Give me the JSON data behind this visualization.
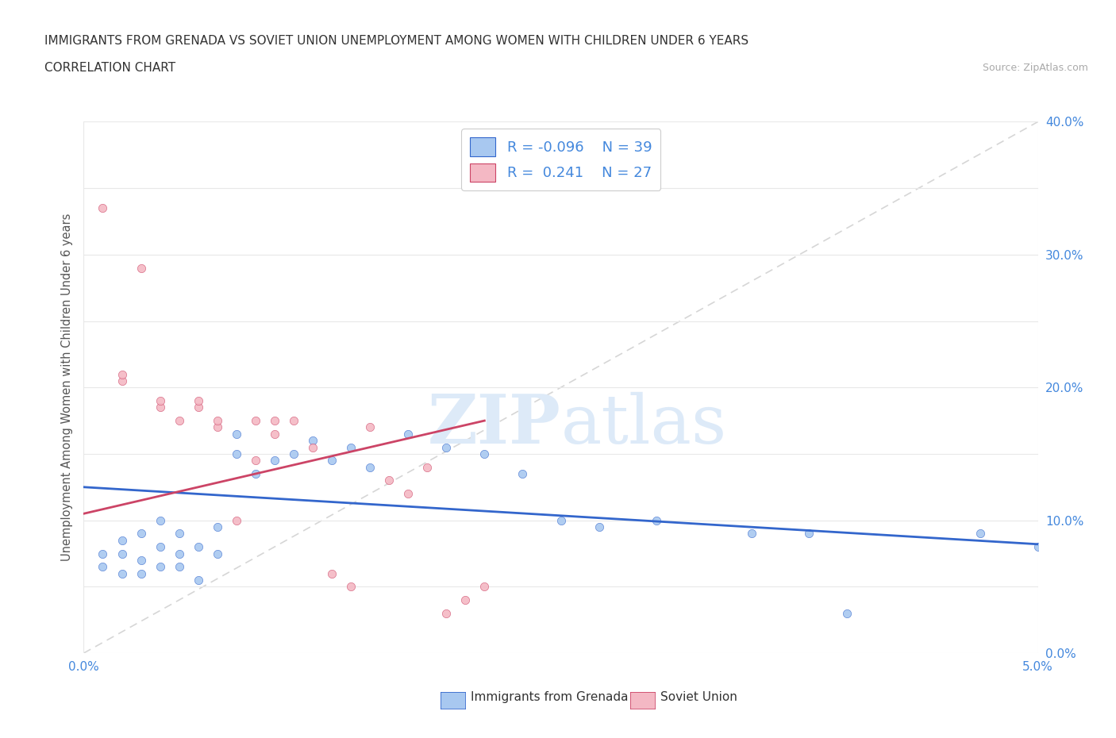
{
  "title_line1": "IMMIGRANTS FROM GRENADA VS SOVIET UNION UNEMPLOYMENT AMONG WOMEN WITH CHILDREN UNDER 6 YEARS",
  "title_line2": "CORRELATION CHART",
  "source_text": "Source: ZipAtlas.com",
  "ylabel_label": "Unemployment Among Women with Children Under 6 years",
  "legend_label1": "Immigrants from Grenada",
  "legend_label2": "Soviet Union",
  "color_grenada": "#a8c8f0",
  "color_soviet": "#f4b8c4",
  "color_trend_grenada": "#3366cc",
  "color_trend_soviet": "#cc4466",
  "color_diagonal": "#cccccc",
  "color_grid": "#e8e8e8",
  "color_title": "#333333",
  "color_source": "#aaaaaa",
  "color_axis_label": "#4488dd",
  "background_color": "#ffffff",
  "watermark_color": "#ddeaf8",
  "xmin": 0.0,
  "xmax": 0.05,
  "ymin": 0.0,
  "ymax": 0.4,
  "grenada_x": [
    0.001,
    0.001,
    0.002,
    0.002,
    0.002,
    0.003,
    0.003,
    0.003,
    0.004,
    0.004,
    0.004,
    0.005,
    0.005,
    0.005,
    0.006,
    0.006,
    0.007,
    0.007,
    0.008,
    0.008,
    0.009,
    0.01,
    0.011,
    0.012,
    0.013,
    0.014,
    0.015,
    0.017,
    0.019,
    0.021,
    0.023,
    0.025,
    0.027,
    0.03,
    0.035,
    0.038,
    0.04,
    0.047,
    0.05
  ],
  "grenada_y": [
    0.065,
    0.075,
    0.06,
    0.075,
    0.085,
    0.06,
    0.07,
    0.09,
    0.065,
    0.08,
    0.1,
    0.065,
    0.075,
    0.09,
    0.055,
    0.08,
    0.075,
    0.095,
    0.15,
    0.165,
    0.135,
    0.145,
    0.15,
    0.16,
    0.145,
    0.155,
    0.14,
    0.165,
    0.155,
    0.15,
    0.135,
    0.1,
    0.095,
    0.1,
    0.09,
    0.09,
    0.03,
    0.09,
    0.08
  ],
  "soviet_x": [
    0.001,
    0.002,
    0.002,
    0.003,
    0.004,
    0.004,
    0.005,
    0.006,
    0.006,
    0.007,
    0.007,
    0.008,
    0.009,
    0.009,
    0.01,
    0.01,
    0.011,
    0.012,
    0.013,
    0.014,
    0.015,
    0.016,
    0.017,
    0.018,
    0.019,
    0.02,
    0.021
  ],
  "soviet_y": [
    0.335,
    0.205,
    0.21,
    0.29,
    0.185,
    0.19,
    0.175,
    0.185,
    0.19,
    0.17,
    0.175,
    0.1,
    0.175,
    0.145,
    0.175,
    0.165,
    0.175,
    0.155,
    0.06,
    0.05,
    0.17,
    0.13,
    0.12,
    0.14,
    0.03,
    0.04,
    0.05
  ],
  "grenada_trend_x": [
    0.0,
    0.05
  ],
  "grenada_trend_y": [
    0.125,
    0.082
  ],
  "soviet_trend_x": [
    0.0,
    0.021
  ],
  "soviet_trend_y": [
    0.105,
    0.175
  ]
}
